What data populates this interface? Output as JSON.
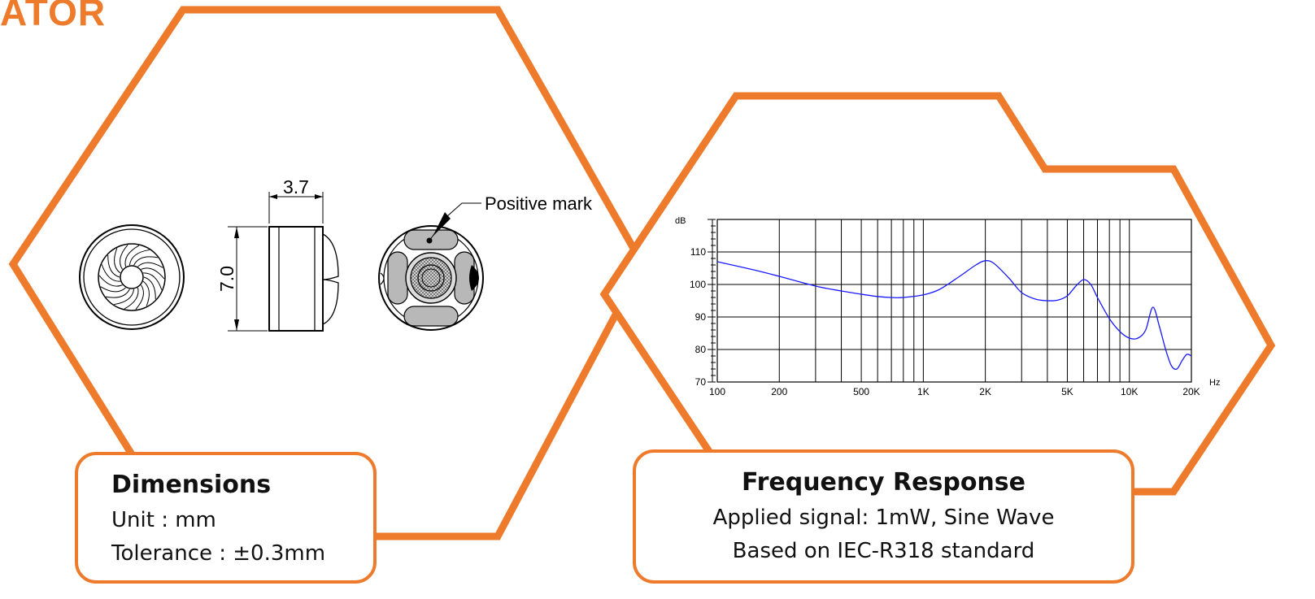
{
  "brand_text": "ATOR",
  "colors": {
    "accent": "#ee7b2b",
    "curve": "#1a1aff",
    "line": "#000000",
    "grey": "#b8b8b8"
  },
  "dimensions_drawing": {
    "thickness_label": "3.7",
    "diameter_label": "7.0",
    "positive_mark_label": "Positive mark"
  },
  "dimensions_card": {
    "title": "Dimensions",
    "unit": "Unit : mm",
    "tolerance": "Tolerance : ±0.3mm"
  },
  "frequency_card": {
    "title": "Frequency Response",
    "signal": "Applied signal: 1mW, Sine Wave",
    "standard": "Based on IEC-R318 standard"
  },
  "chart_data": {
    "type": "line",
    "y_unit": "dB",
    "x_unit": "Hz",
    "x_scale": "log",
    "xlim": [
      100,
      20000
    ],
    "ylim": [
      70,
      120
    ],
    "x_tick_labels": [
      {
        "value": 100,
        "label": "100"
      },
      {
        "value": 200,
        "label": "200"
      },
      {
        "value": 500,
        "label": "500"
      },
      {
        "value": 1000,
        "label": "1K"
      },
      {
        "value": 2000,
        "label": "2K"
      },
      {
        "value": 5000,
        "label": "5K"
      },
      {
        "value": 10000,
        "label": "10K"
      },
      {
        "value": 20000,
        "label": "20K"
      }
    ],
    "x_gridlines": [
      100,
      200,
      300,
      400,
      500,
      600,
      700,
      800,
      900,
      1000,
      2000,
      3000,
      4000,
      5000,
      6000,
      7000,
      8000,
      9000,
      10000,
      20000
    ],
    "y_tick_labels": [
      70,
      80,
      90,
      100,
      110
    ],
    "y_gridlines": [
      80,
      90,
      100,
      110
    ],
    "grid": true,
    "series": [
      {
        "x": [
          100,
          150,
          200,
          300,
          400,
          500,
          600,
          700,
          800,
          1000,
          1200,
          1500,
          1800,
          2000,
          2200,
          2600,
          3000,
          3500,
          4000,
          4500,
          5000,
          5500,
          6000,
          6500,
          7000,
          8000,
          9000,
          10000,
          11000,
          12000,
          13000,
          14000,
          15000,
          16000,
          17000,
          18000,
          19000,
          20000
        ],
        "y": [
          107,
          104.5,
          102.5,
          99.5,
          98,
          97,
          96.3,
          96,
          96,
          96.8,
          98.5,
          102.5,
          106,
          107.3,
          106.5,
          102,
          97.5,
          95.5,
          95,
          95.2,
          96.5,
          99.5,
          101.5,
          100,
          96,
          89.5,
          85.5,
          83.5,
          83.5,
          86,
          93,
          87,
          80,
          75,
          74,
          76.5,
          78.5,
          78
        ]
      }
    ]
  }
}
